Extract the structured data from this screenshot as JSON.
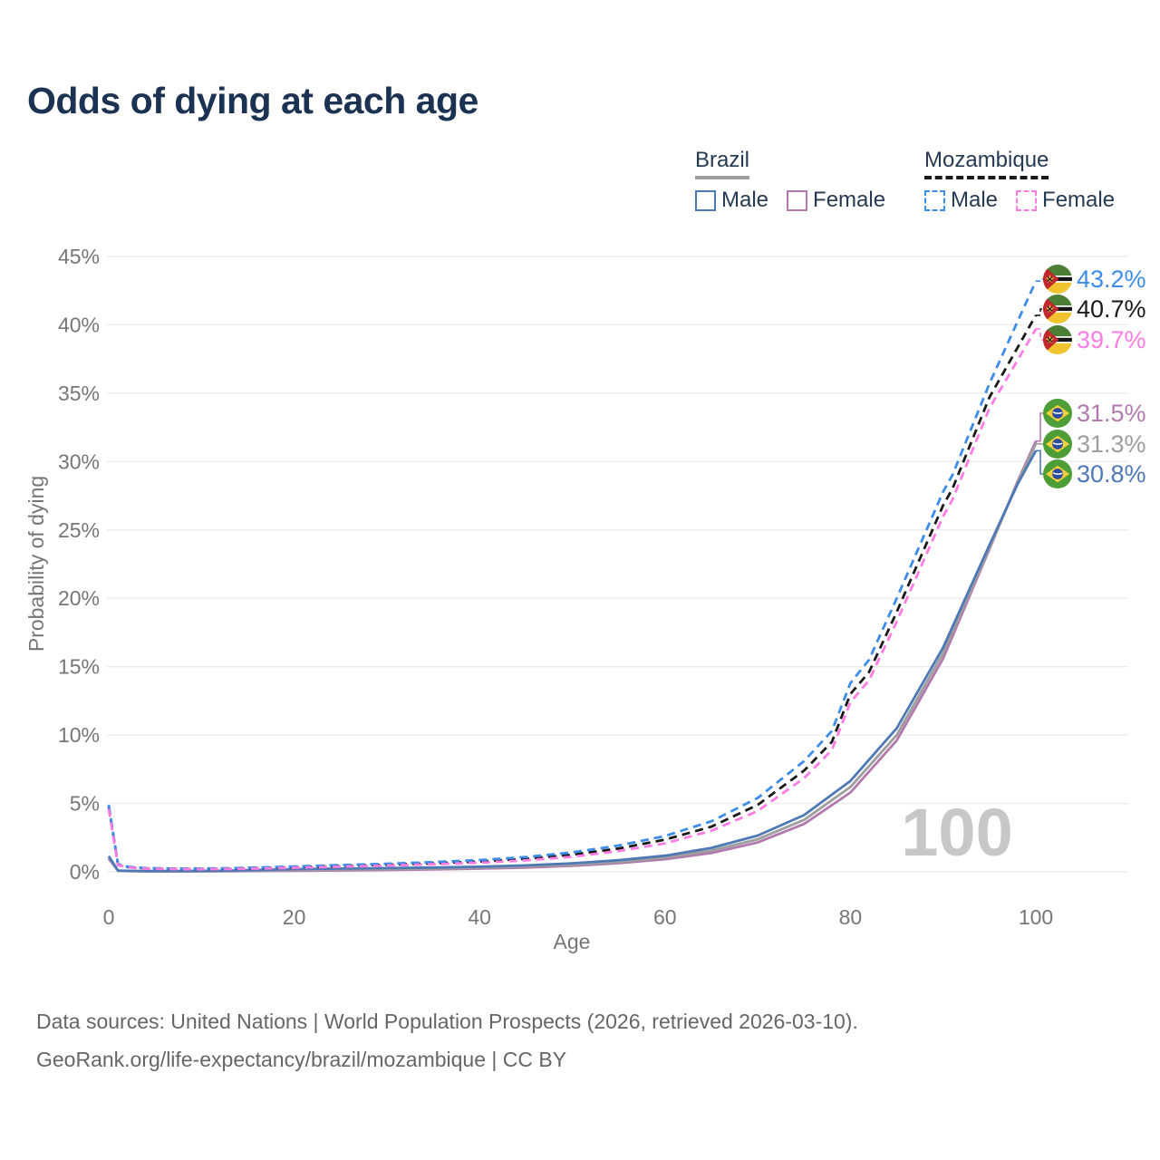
{
  "title": "Odds of dying at each age",
  "legend": {
    "groups": [
      {
        "name": "Brazil",
        "line_style": "solid",
        "line_color": "#9e9e9e",
        "items": [
          {
            "label": "Male",
            "color": "#4e79b5",
            "dashed": false
          },
          {
            "label": "Female",
            "color": "#b279ae",
            "dashed": false
          }
        ]
      },
      {
        "name": "Mozambique",
        "line_style": "dashed",
        "line_color": "#1a1a1a",
        "items": [
          {
            "label": "Male",
            "color": "#3d8de8",
            "dashed": true
          },
          {
            "label": "Female",
            "color": "#ff7ce2",
            "dashed": true
          }
        ]
      }
    ]
  },
  "watermark": "100",
  "footer": {
    "line1": "Data sources: United Nations | World Population Prospects (2026, retrieved 2026-03-10).",
    "line2": "GeoRank.org/life-expectancy/brazil/mozambique | CC BY"
  },
  "chart_data": {
    "type": "line",
    "title": "Odds of dying at each age",
    "xlabel": "Age",
    "ylabel": "Probability of dying",
    "xlim": [
      0,
      100
    ],
    "ylim_pct": [
      0,
      45
    ],
    "xticks": [
      0,
      20,
      40,
      60,
      80,
      100
    ],
    "yticks_pct": [
      0,
      5,
      10,
      15,
      20,
      25,
      30,
      35,
      40,
      45
    ],
    "grid": true,
    "legend_position": "top-right",
    "series": [
      {
        "name": "Brazil female",
        "country": "Brazil",
        "sex": "Female",
        "color": "#b279ae",
        "dashed": false,
        "flag": "brazil",
        "end_label": "31.5%",
        "label_color": "#b279ae",
        "points": [
          [
            0,
            0.95
          ],
          [
            1,
            0.07
          ],
          [
            2,
            0.05
          ],
          [
            4,
            0.03
          ],
          [
            8,
            0.03
          ],
          [
            12,
            0.04
          ],
          [
            16,
            0.06
          ],
          [
            20,
            0.08
          ],
          [
            25,
            0.1
          ],
          [
            30,
            0.13
          ],
          [
            35,
            0.17
          ],
          [
            40,
            0.23
          ],
          [
            45,
            0.31
          ],
          [
            50,
            0.44
          ],
          [
            55,
            0.63
          ],
          [
            60,
            0.92
          ],
          [
            65,
            1.38
          ],
          [
            70,
            2.15
          ],
          [
            75,
            3.5
          ],
          [
            80,
            5.8
          ],
          [
            85,
            9.6
          ],
          [
            90,
            15.6
          ],
          [
            95,
            23.6
          ],
          [
            98,
            28.5
          ],
          [
            100,
            31.5
          ]
        ]
      },
      {
        "name": "Brazil both sexes",
        "country": "Brazil",
        "sex": "Both",
        "color": "#9e9e9e",
        "dashed": false,
        "flag": "brazil",
        "end_label": "31.3%",
        "label_color": "#9e9e9e",
        "points": [
          [
            0,
            1.05
          ],
          [
            1,
            0.08
          ],
          [
            2,
            0.06
          ],
          [
            4,
            0.04
          ],
          [
            8,
            0.04
          ],
          [
            12,
            0.05
          ],
          [
            16,
            0.09
          ],
          [
            20,
            0.14
          ],
          [
            25,
            0.17
          ],
          [
            30,
            0.2
          ],
          [
            35,
            0.24
          ],
          [
            40,
            0.3
          ],
          [
            45,
            0.39
          ],
          [
            50,
            0.52
          ],
          [
            55,
            0.73
          ],
          [
            60,
            1.04
          ],
          [
            65,
            1.55
          ],
          [
            70,
            2.38
          ],
          [
            75,
            3.8
          ],
          [
            80,
            6.2
          ],
          [
            85,
            10.0
          ],
          [
            90,
            16.0
          ],
          [
            95,
            23.7
          ],
          [
            98,
            28.4
          ],
          [
            100,
            31.3
          ]
        ]
      },
      {
        "name": "Brazil male",
        "country": "Brazil",
        "sex": "Male",
        "color": "#4e79b5",
        "dashed": false,
        "flag": "brazil",
        "end_label": "30.8%",
        "label_color": "#4e79b5",
        "points": [
          [
            0,
            1.15
          ],
          [
            1,
            0.09
          ],
          [
            2,
            0.07
          ],
          [
            4,
            0.05
          ],
          [
            8,
            0.05
          ],
          [
            12,
            0.07
          ],
          [
            16,
            0.13
          ],
          [
            20,
            0.2
          ],
          [
            25,
            0.24
          ],
          [
            30,
            0.27
          ],
          [
            35,
            0.31
          ],
          [
            40,
            0.37
          ],
          [
            45,
            0.47
          ],
          [
            50,
            0.62
          ],
          [
            55,
            0.85
          ],
          [
            60,
            1.18
          ],
          [
            65,
            1.75
          ],
          [
            70,
            2.65
          ],
          [
            75,
            4.15
          ],
          [
            80,
            6.65
          ],
          [
            85,
            10.5
          ],
          [
            90,
            16.4
          ],
          [
            95,
            23.9
          ],
          [
            98,
            28.3
          ],
          [
            100,
            30.8
          ]
        ]
      },
      {
        "name": "Mozambique both sexes",
        "country": "Mozambique",
        "sex": "Both",
        "color": "#1a1a1a",
        "dashed": true,
        "flag": "mozambique",
        "end_label": "40.7%",
        "label_color": "#1a1a1a",
        "points": [
          [
            0,
            4.75
          ],
          [
            1,
            0.52
          ],
          [
            2,
            0.35
          ],
          [
            4,
            0.25
          ],
          [
            8,
            0.21
          ],
          [
            12,
            0.22
          ],
          [
            16,
            0.27
          ],
          [
            20,
            0.34
          ],
          [
            25,
            0.43
          ],
          [
            30,
            0.52
          ],
          [
            35,
            0.62
          ],
          [
            40,
            0.75
          ],
          [
            45,
            0.95
          ],
          [
            50,
            1.25
          ],
          [
            55,
            1.7
          ],
          [
            60,
            2.35
          ],
          [
            65,
            3.3
          ],
          [
            70,
            4.9
          ],
          [
            75,
            7.4
          ],
          [
            78,
            9.5
          ],
          [
            80,
            13.0
          ],
          [
            82,
            14.6
          ],
          [
            85,
            19.0
          ],
          [
            90,
            26.8
          ],
          [
            91,
            28.0
          ],
          [
            95,
            34.7
          ],
          [
            100,
            40.7
          ]
        ]
      },
      {
        "name": "Mozambique male",
        "country": "Mozambique",
        "sex": "Male",
        "color": "#3d8de8",
        "dashed": true,
        "flag": "mozambique",
        "end_label": "43.2%",
        "label_color": "#3d8de8",
        "points": [
          [
            0,
            4.9
          ],
          [
            1,
            0.56
          ],
          [
            2,
            0.38
          ],
          [
            4,
            0.27
          ],
          [
            8,
            0.23
          ],
          [
            12,
            0.25
          ],
          [
            16,
            0.31
          ],
          [
            20,
            0.39
          ],
          [
            25,
            0.49
          ],
          [
            30,
            0.59
          ],
          [
            35,
            0.71
          ],
          [
            40,
            0.86
          ],
          [
            45,
            1.08
          ],
          [
            50,
            1.42
          ],
          [
            55,
            1.92
          ],
          [
            60,
            2.62
          ],
          [
            65,
            3.7
          ],
          [
            70,
            5.4
          ],
          [
            75,
            8.1
          ],
          [
            78,
            10.3
          ],
          [
            80,
            13.8
          ],
          [
            82,
            15.5
          ],
          [
            85,
            20.0
          ],
          [
            90,
            27.8
          ],
          [
            91,
            29.0
          ],
          [
            95,
            35.7
          ],
          [
            100,
            43.2
          ]
        ]
      },
      {
        "name": "Mozambique female",
        "country": "Mozambique",
        "sex": "Female",
        "color": "#ff7ce2",
        "dashed": true,
        "flag": "mozambique",
        "end_label": "39.7%",
        "label_color": "#ff7ce2",
        "points": [
          [
            0,
            4.6
          ],
          [
            1,
            0.48
          ],
          [
            2,
            0.33
          ],
          [
            4,
            0.23
          ],
          [
            8,
            0.19
          ],
          [
            12,
            0.2
          ],
          [
            16,
            0.24
          ],
          [
            20,
            0.3
          ],
          [
            25,
            0.38
          ],
          [
            30,
            0.46
          ],
          [
            35,
            0.55
          ],
          [
            40,
            0.66
          ],
          [
            45,
            0.84
          ],
          [
            50,
            1.1
          ],
          [
            55,
            1.52
          ],
          [
            60,
            2.08
          ],
          [
            65,
            3.0
          ],
          [
            70,
            4.45
          ],
          [
            75,
            6.85
          ],
          [
            78,
            8.9
          ],
          [
            80,
            12.4
          ],
          [
            82,
            14.0
          ],
          [
            85,
            18.3
          ],
          [
            90,
            26.0
          ],
          [
            91,
            27.2
          ],
          [
            95,
            33.9
          ],
          [
            100,
            39.7
          ]
        ]
      }
    ]
  }
}
